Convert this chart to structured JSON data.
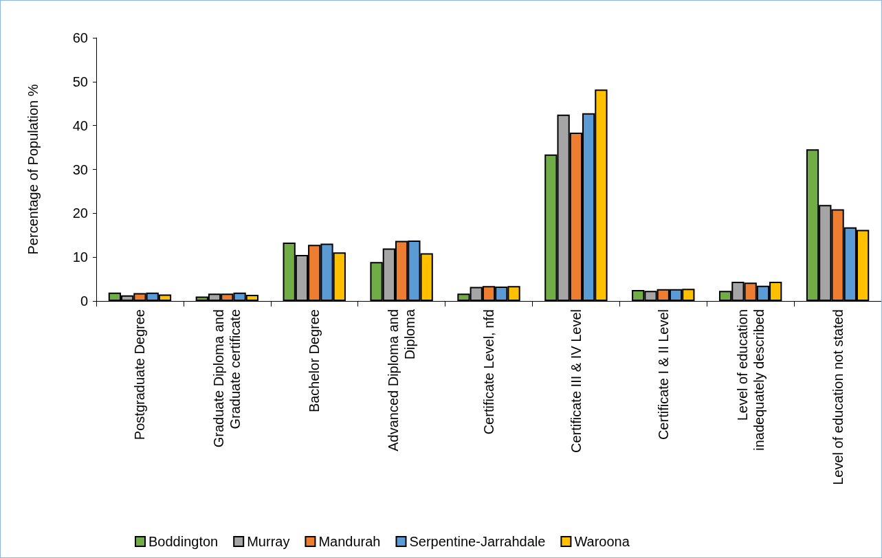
{
  "chart_data": {
    "type": "bar",
    "ylabel": "Percentage of Population %",
    "categories": [
      "Postgraduate Degree",
      "Graduate Diploma and\nGraduate certificate",
      "Bachelor Degree",
      "Advanced Diploma and\nDiploma",
      "Certificate Level, nfd",
      "Certificate III & IV Level",
      "Certificate I & II Level",
      "Level of education\ninadequately described",
      "Level of education not stated"
    ],
    "series": [
      {
        "name": "Boddington",
        "color": "#70ad47",
        "values": [
          1.9,
          1.0,
          13.3,
          8.9,
          1.7,
          33.4,
          2.5,
          2.3,
          34.6
        ]
      },
      {
        "name": "Murray",
        "color": "#a5a5a5",
        "values": [
          1.3,
          1.7,
          10.5,
          12.0,
          3.2,
          42.5,
          2.3,
          4.4,
          21.9
        ]
      },
      {
        "name": "Mandurah",
        "color": "#ed7d31",
        "values": [
          1.8,
          1.7,
          12.8,
          13.7,
          3.4,
          38.4,
          2.7,
          4.2,
          20.9
        ]
      },
      {
        "name": "Serpentine-Jarrahdale",
        "color": "#5b9bd5",
        "values": [
          1.9,
          1.9,
          13.1,
          13.8,
          3.3,
          42.8,
          2.7,
          3.5,
          16.8
        ]
      },
      {
        "name": "Waroona",
        "color": "#ffc000",
        "values": [
          1.5,
          1.4,
          11.1,
          10.9,
          3.4,
          48.2,
          2.8,
          4.4,
          16.2
        ]
      }
    ],
    "ylim": [
      0,
      60
    ],
    "yticks": [
      0,
      10,
      20,
      30,
      40,
      50,
      60
    ],
    "grid": false,
    "legend": "bottom"
  }
}
